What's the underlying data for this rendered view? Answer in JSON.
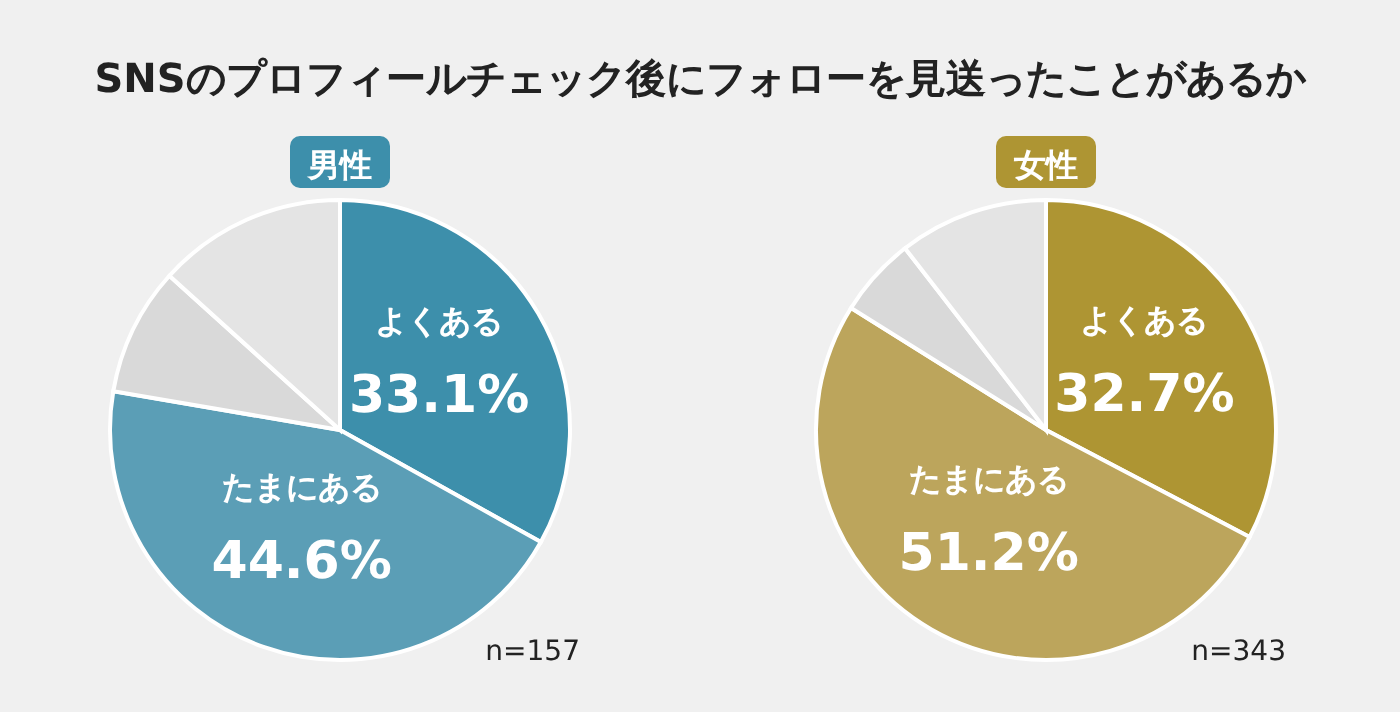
{
  "chart_data": [
    {
      "type": "pie",
      "title": "SNSのプロフィールチェック後にフォローを見送ったことがあるか",
      "subtitle": "男性",
      "categories": [
        "よくある",
        "たまにある",
        null,
        null
      ],
      "values": [
        33.1,
        44.6,
        9.0,
        13.3
      ],
      "colors": [
        "#3d8fab",
        "#5b9eb6",
        "#d9d9d9",
        "#e4e4e4"
      ],
      "value_labels": [
        "33.1%",
        "44.6%",
        null,
        null
      ],
      "annotations": [
        "n=157"
      ]
    },
    {
      "type": "pie",
      "subtitle": "女性",
      "categories": [
        "よくある",
        "たまにある",
        null,
        null
      ],
      "values": [
        32.7,
        51.2,
        5.6,
        10.5
      ],
      "colors": [
        "#ae9533",
        "#bca55c",
        "#d9d9d9",
        "#e4e4e4"
      ],
      "value_labels": [
        "32.7%",
        "51.2%",
        null,
        null
      ],
      "annotations": [
        "n=343"
      ]
    }
  ]
}
